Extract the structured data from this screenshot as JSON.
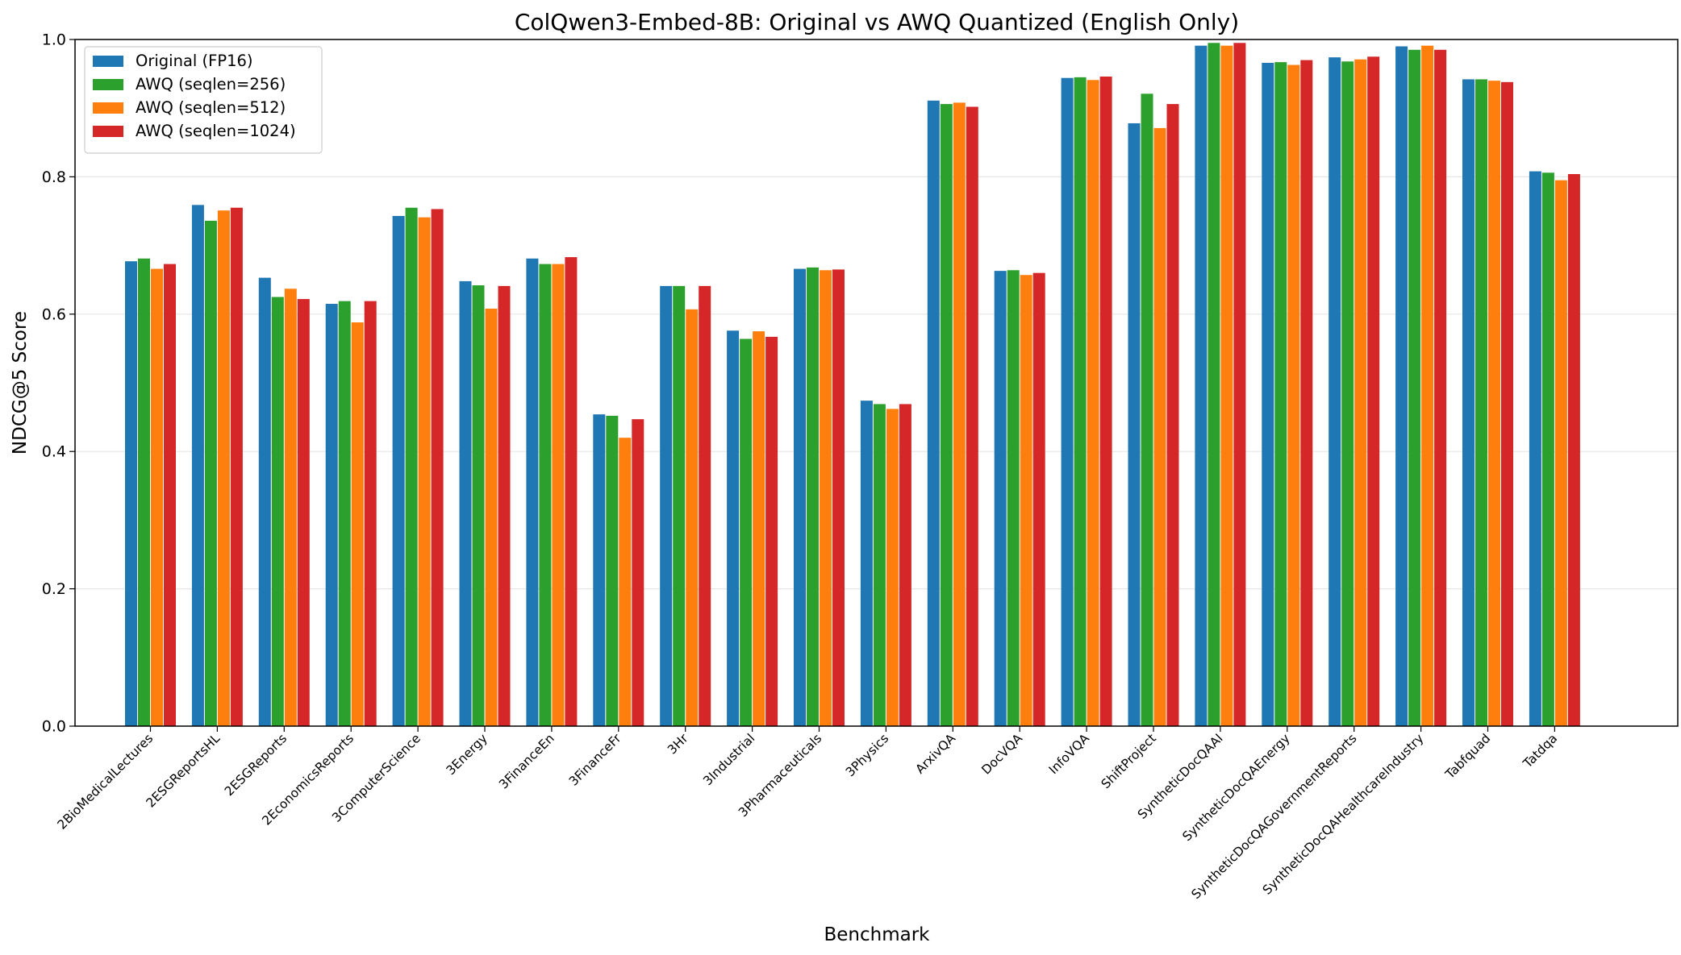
{
  "chart_data": {
    "type": "bar",
    "title": "ColQwen3-Embed-8B: Original vs AWQ Quantized (English Only)",
    "xlabel": "Benchmark",
    "ylabel": "NDCG@5 Score",
    "ylim": [
      0,
      1.0
    ],
    "yticks": [
      "0.0",
      "0.2",
      "0.4",
      "0.6",
      "0.8",
      "1.0"
    ],
    "grid": "horizontal",
    "legend_position": "top-left",
    "categories": [
      "2BioMedicalLectures",
      "2ESGReportsHL",
      "2ESGReports",
      "2EconomicsReports",
      "3ComputerScience",
      "3Energy",
      "3FinanceEn",
      "3FinanceFr",
      "3Hr",
      "3Industrial",
      "3Pharmaceuticals",
      "3Physics",
      "ArxivQA",
      "DocVQA",
      "InfoVQA",
      "ShiftProject",
      "SyntheticDocQAAI",
      "SyntheticDocQAEnergy",
      "SyntheticDocQAGovernmentReports",
      "SyntheticDocQAHealthcareIndustry",
      "Tabfquad",
      "Tatdqa"
    ],
    "series": [
      {
        "name": "Original (FP16)",
        "color": "#1f77b4",
        "values": [
          0.677,
          0.759,
          0.653,
          0.615,
          0.743,
          0.648,
          0.681,
          0.454,
          0.641,
          0.576,
          0.666,
          0.474,
          0.911,
          0.663,
          0.944,
          0.878,
          0.991,
          0.966,
          0.974,
          0.99,
          0.942,
          0.808
        ]
      },
      {
        "name": "AWQ (seqlen=256)",
        "color": "#2ca02c",
        "values": [
          0.681,
          0.736,
          0.625,
          0.619,
          0.755,
          0.642,
          0.673,
          0.452,
          0.641,
          0.564,
          0.668,
          0.469,
          0.906,
          0.664,
          0.945,
          0.921,
          0.995,
          0.967,
          0.968,
          0.985,
          0.942,
          0.806
        ]
      },
      {
        "name": "AWQ (seqlen=512)",
        "color": "#ff7f0e",
        "values": [
          0.666,
          0.751,
          0.637,
          0.588,
          0.741,
          0.608,
          0.673,
          0.42,
          0.607,
          0.575,
          0.664,
          0.462,
          0.908,
          0.657,
          0.941,
          0.871,
          0.991,
          0.963,
          0.971,
          0.991,
          0.94,
          0.795
        ]
      },
      {
        "name": "AWQ (seqlen=1024)",
        "color": "#d62728",
        "values": [
          0.673,
          0.755,
          0.622,
          0.619,
          0.753,
          0.641,
          0.683,
          0.447,
          0.641,
          0.567,
          0.665,
          0.469,
          0.902,
          0.66,
          0.946,
          0.906,
          0.995,
          0.97,
          0.975,
          0.985,
          0.938,
          0.804
        ]
      }
    ]
  }
}
